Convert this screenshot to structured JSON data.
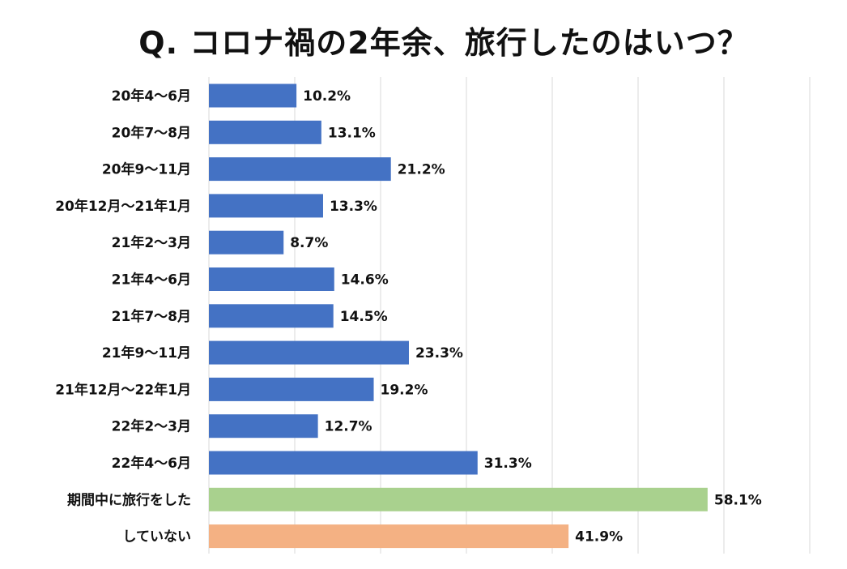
{
  "chart_data": {
    "type": "bar",
    "orientation": "horizontal",
    "title": "Q. コロナ禍の2年余、旅行したのはいつ？",
    "xlabel": "",
    "ylabel": "",
    "xlim": [
      0,
      70
    ],
    "grid": true,
    "categories": [
      "20年4～6月",
      "20年7～8月",
      "20年9～11月",
      "20年12月～21年1月",
      "21年2～3月",
      "21年4～6月",
      "21年7～8月",
      "21年9～11月",
      "21年12月～22年1月",
      "22年2～3月",
      "22年4～6月",
      "期間中に旅行をした",
      "していない"
    ],
    "values": [
      10.2,
      13.1,
      21.2,
      13.3,
      8.7,
      14.6,
      14.5,
      23.3,
      19.2,
      12.7,
      31.3,
      58.1,
      41.9
    ],
    "value_labels": [
      "10.2%",
      "13.1%",
      "21.2%",
      "13.3%",
      "8.7%",
      "14.6%",
      "14.5%",
      "23.3%",
      "19.2%",
      "12.7%",
      "31.3%",
      "58.1%",
      "41.9%"
    ],
    "bar_colors": [
      "#4472c4",
      "#4472c4",
      "#4472c4",
      "#4472c4",
      "#4472c4",
      "#4472c4",
      "#4472c4",
      "#4472c4",
      "#4472c4",
      "#4472c4",
      "#4472c4",
      "#a9d18e",
      "#f4b183"
    ]
  }
}
